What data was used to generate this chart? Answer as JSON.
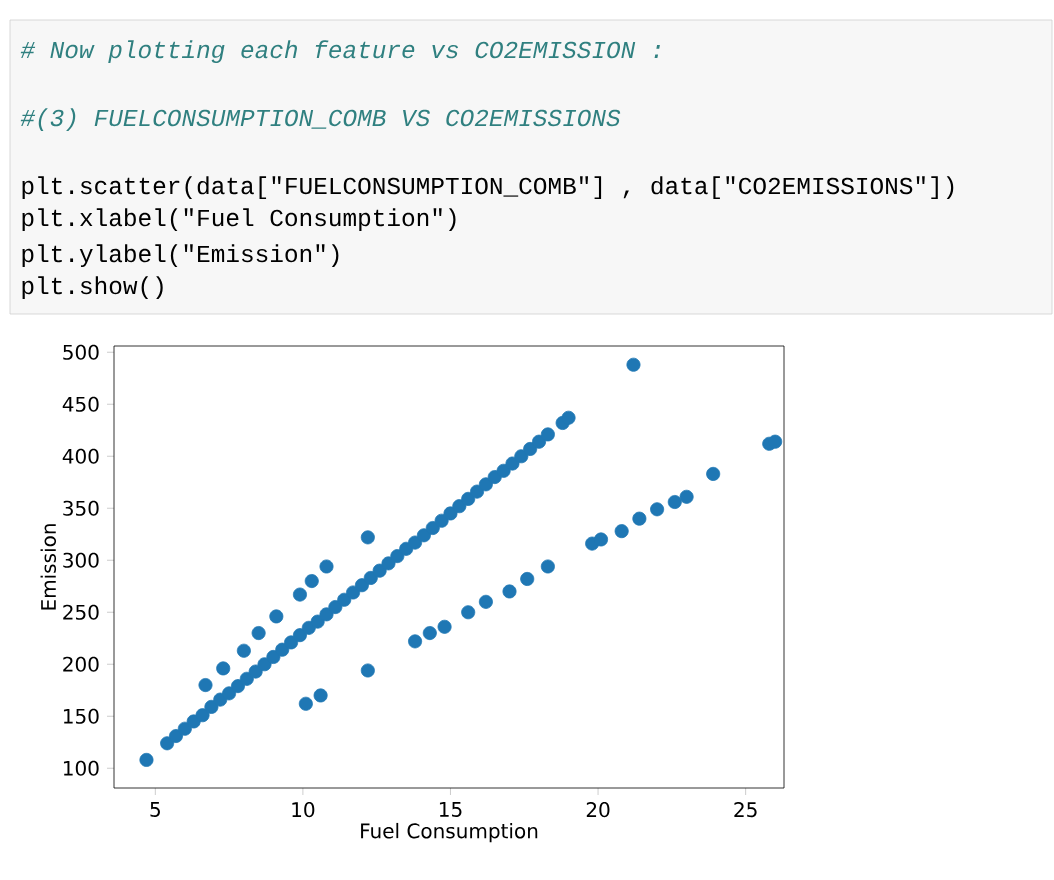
{
  "chart_data": {
    "type": "scatter",
    "xlabel": "Fuel Consumption",
    "ylabel": "Emission",
    "annotations": [
      "# Now plotting each feature vs CO2EMISSION :",
      "#(3) FUELCONSUMPTION_COMB VS CO2EMISSIONS",
      "plt.scatter(data[\"FUELCONSUMPTION_COMB\"] , data[\"CO2EMISSIONS\"])",
      "plt.xlabel(\"Fuel Consumption\")",
      "plt.ylabel(\"Emission\")",
      "plt.show()"
    ],
    "xlim": [
      3.6,
      26.3
    ],
    "ylim": [
      81,
      506
    ],
    "xticks": [
      5,
      10,
      15,
      20,
      25
    ],
    "yticks": [
      100,
      150,
      200,
      250,
      300,
      350,
      400,
      450,
      500
    ],
    "marker": "circle",
    "grid": false,
    "legend": false,
    "series": [
      {
        "color": "#1f77b4",
        "x": [
          4.7,
          5.4,
          5.7,
          6.0,
          6.3,
          6.6,
          6.9,
          7.2,
          7.5,
          7.8,
          8.1,
          8.4,
          8.7,
          9.0,
          9.3,
          9.6,
          9.9,
          10.2,
          10.5,
          10.8,
          11.1,
          11.4,
          11.7,
          12.0,
          12.3,
          12.6,
          12.9,
          13.2,
          13.5,
          13.8,
          14.1,
          14.4,
          14.7,
          15.0,
          15.3,
          15.6,
          15.9,
          16.2,
          16.5,
          16.8,
          17.1,
          17.4,
          17.7,
          18.0,
          18.3,
          18.8,
          19.0,
          6.7,
          7.3,
          8.0,
          8.5,
          9.1,
          9.9,
          10.3,
          10.8,
          12.2,
          10.1,
          10.6,
          12.2,
          13.8,
          14.3,
          14.8,
          15.6,
          16.2,
          17.0,
          17.6,
          18.3,
          19.8,
          20.1,
          20.8,
          21.4,
          22.0,
          22.6,
          23.0,
          23.9,
          25.8,
          26.0,
          21.2
        ],
        "values": [
          108,
          124,
          131,
          138,
          145,
          151,
          159,
          166,
          172,
          179,
          186,
          193,
          200,
          207,
          214,
          221,
          228,
          235,
          241,
          248,
          255,
          262,
          269,
          276,
          283,
          290,
          297,
          304,
          311,
          317,
          324,
          331,
          338,
          345,
          352,
          359,
          366,
          373,
          380,
          386,
          393,
          400,
          407,
          414,
          421,
          432,
          437,
          180,
          196,
          213,
          230,
          246,
          267,
          280,
          294,
          322,
          162,
          170,
          194,
          222,
          230,
          236,
          250,
          260,
          270,
          282,
          294,
          316,
          320,
          328,
          340,
          349,
          356,
          361,
          383,
          412,
          414,
          488
        ]
      }
    ]
  }
}
